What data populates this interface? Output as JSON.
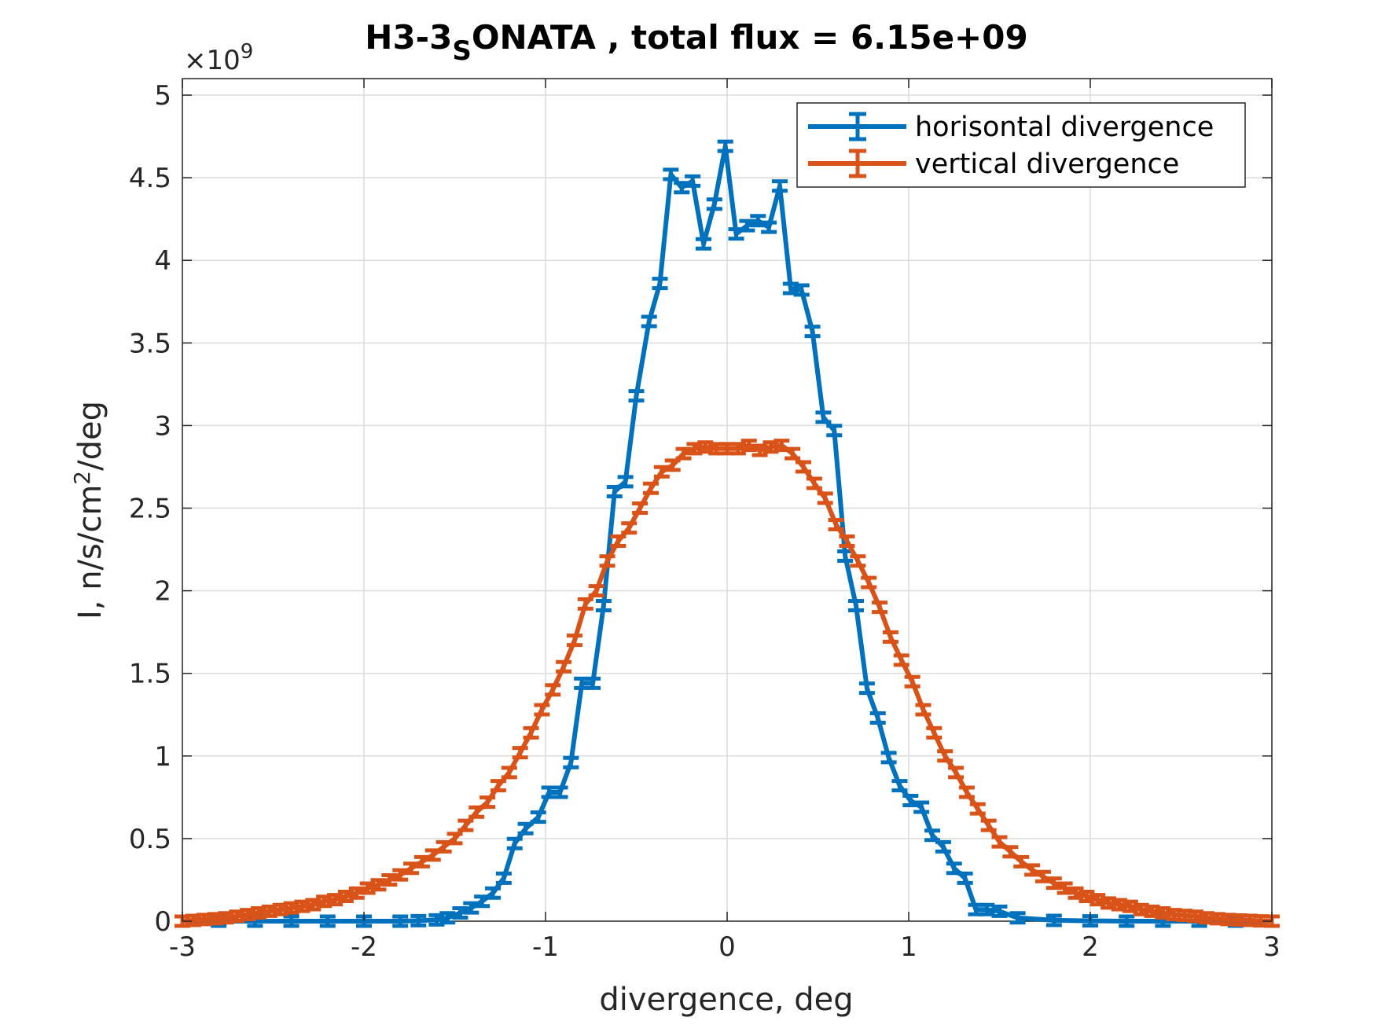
{
  "chart_data": {
    "type": "line",
    "title": {
      "prefix": "H3-3",
      "subscript": "S",
      "suffix": "ONATA , total flux =  6.15e+09"
    },
    "xlabel": "divergence, deg",
    "ylabel": {
      "prefix": "I, n/s/cm",
      "superscript": "2",
      "suffix": "/deg"
    },
    "y_exponent": {
      "times": "×10",
      "power": "9"
    },
    "xlim": [
      -3,
      3
    ],
    "ylim": [
      0,
      5.1
    ],
    "x_ticks": [
      -3,
      -2,
      -1,
      0,
      1,
      2,
      3
    ],
    "x_tick_labels": [
      "-3",
      "-2",
      "-1",
      "0",
      "1",
      "2",
      "3"
    ],
    "y_ticks": [
      0,
      0.5,
      1,
      1.5,
      2,
      2.5,
      3,
      3.5,
      4,
      4.5,
      5
    ],
    "y_tick_labels": [
      "0",
      "0.5",
      "1",
      "1.5",
      "2",
      "2.5",
      "3",
      "3.5",
      "4",
      "4.5",
      "5"
    ],
    "grid": true,
    "legend_position": "top-right",
    "series": [
      {
        "name": "horisontal divergence",
        "color": "#0072BD",
        "x": [
          -3.0,
          -2.8,
          -2.6,
          -2.4,
          -2.2,
          -2.0,
          -1.8,
          -1.7,
          -1.6,
          -1.54,
          -1.47,
          -1.41,
          -1.35,
          -1.29,
          -1.23,
          -1.17,
          -1.11,
          -1.04,
          -0.98,
          -0.92,
          -0.86,
          -0.8,
          -0.74,
          -0.68,
          -0.62,
          -0.56,
          -0.5,
          -0.43,
          -0.37,
          -0.31,
          -0.25,
          -0.19,
          -0.13,
          -0.07,
          -0.01,
          0.05,
          0.11,
          0.17,
          0.23,
          0.29,
          0.35,
          0.41,
          0.47,
          0.53,
          0.59,
          0.65,
          0.71,
          0.77,
          0.83,
          0.89,
          0.95,
          1.01,
          1.07,
          1.13,
          1.19,
          1.25,
          1.31,
          1.37,
          1.43,
          1.5,
          1.6,
          1.8,
          2.0,
          2.2,
          2.4,
          2.6,
          2.8,
          3.0
        ],
        "values": [
          0.0,
          0.0,
          0.0,
          0.0,
          0.0,
          0.0,
          0.0,
          0.003,
          0.008,
          0.02,
          0.05,
          0.08,
          0.12,
          0.17,
          0.26,
          0.47,
          0.56,
          0.63,
          0.78,
          0.78,
          0.96,
          1.44,
          1.44,
          1.91,
          2.6,
          2.66,
          3.18,
          3.63,
          3.86,
          4.52,
          4.44,
          4.48,
          4.1,
          4.34,
          4.69,
          4.16,
          4.21,
          4.24,
          4.2,
          4.45,
          3.83,
          3.82,
          3.57,
          3.05,
          2.97,
          2.21,
          1.91,
          1.41,
          1.23,
          0.99,
          0.82,
          0.73,
          0.69,
          0.52,
          0.45,
          0.32,
          0.26,
          0.07,
          0.07,
          0.06,
          0.02,
          0.005,
          0.002,
          0.0,
          0.0,
          0.0,
          0.0,
          0.0
        ]
      },
      {
        "name": "vertical divergence",
        "color": "#D95319",
        "x": [
          -3.0,
          -2.94,
          -2.88,
          -2.82,
          -2.76,
          -2.7,
          -2.64,
          -2.58,
          -2.52,
          -2.46,
          -2.4,
          -2.34,
          -2.28,
          -2.22,
          -2.16,
          -2.1,
          -2.04,
          -1.98,
          -1.92,
          -1.86,
          -1.8,
          -1.74,
          -1.68,
          -1.62,
          -1.56,
          -1.5,
          -1.44,
          -1.38,
          -1.32,
          -1.26,
          -1.2,
          -1.14,
          -1.08,
          -1.02,
          -0.96,
          -0.9,
          -0.84,
          -0.78,
          -0.72,
          -0.66,
          -0.6,
          -0.54,
          -0.48,
          -0.42,
          -0.36,
          -0.3,
          -0.24,
          -0.18,
          -0.12,
          -0.06,
          0.0,
          0.06,
          0.12,
          0.18,
          0.24,
          0.3,
          0.36,
          0.42,
          0.48,
          0.54,
          0.6,
          0.66,
          0.72,
          0.78,
          0.84,
          0.9,
          0.96,
          1.02,
          1.08,
          1.14,
          1.2,
          1.26,
          1.32,
          1.38,
          1.44,
          1.5,
          1.56,
          1.62,
          1.68,
          1.74,
          1.8,
          1.86,
          1.92,
          1.98,
          2.04,
          2.1,
          2.16,
          2.22,
          2.28,
          2.34,
          2.4,
          2.46,
          2.52,
          2.58,
          2.64,
          2.7,
          2.76,
          2.82,
          2.88,
          2.94,
          3.0
        ],
        "values": [
          0.0,
          0.005,
          0.01,
          0.015,
          0.02,
          0.03,
          0.04,
          0.05,
          0.06,
          0.07,
          0.08,
          0.09,
          0.1,
          0.12,
          0.13,
          0.15,
          0.17,
          0.2,
          0.22,
          0.25,
          0.28,
          0.32,
          0.36,
          0.4,
          0.45,
          0.5,
          0.58,
          0.66,
          0.72,
          0.82,
          0.9,
          1.02,
          1.14,
          1.28,
          1.4,
          1.54,
          1.7,
          1.92,
          2.0,
          2.18,
          2.3,
          2.38,
          2.5,
          2.62,
          2.72,
          2.76,
          2.83,
          2.86,
          2.87,
          2.86,
          2.86,
          2.86,
          2.88,
          2.85,
          2.87,
          2.88,
          2.83,
          2.75,
          2.65,
          2.56,
          2.4,
          2.3,
          2.18,
          2.05,
          1.9,
          1.72,
          1.58,
          1.45,
          1.28,
          1.14,
          1.0,
          0.9,
          0.78,
          0.68,
          0.58,
          0.48,
          0.42,
          0.36,
          0.31,
          0.27,
          0.23,
          0.2,
          0.17,
          0.15,
          0.13,
          0.11,
          0.1,
          0.09,
          0.07,
          0.06,
          0.05,
          0.04,
          0.035,
          0.03,
          0.02,
          0.015,
          0.01,
          0.007,
          0.005,
          0.002,
          0.0
        ]
      }
    ]
  }
}
